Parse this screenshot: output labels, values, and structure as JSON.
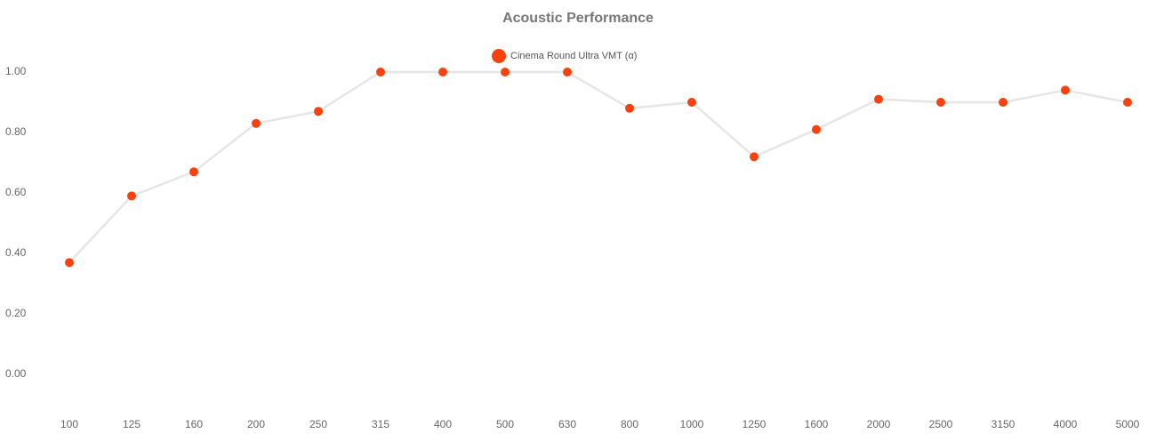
{
  "chart_data": {
    "type": "line",
    "title": "Acoustic Performance",
    "categories": [
      "100",
      "125",
      "160",
      "200",
      "250",
      "315",
      "400",
      "500",
      "630",
      "800",
      "1000",
      "1250",
      "1600",
      "2000",
      "2500",
      "3150",
      "4000",
      "5000"
    ],
    "series": [
      {
        "name": "Cinema Round Ultra VMT (α)",
        "color": "#f8410c",
        "line_color": "#e6e6e6",
        "values": [
          0.37,
          0.59,
          0.67,
          0.83,
          0.87,
          1.0,
          1.0,
          1.0,
          1.0,
          0.88,
          0.9,
          0.72,
          0.81,
          0.91,
          0.9,
          0.9,
          0.94,
          0.9
        ]
      }
    ],
    "ylim": [
      -0.1,
      1.1
    ],
    "yticks": [
      {
        "value": 0,
        "label": "0.00"
      },
      {
        "value": 0.2,
        "label": "0.20"
      },
      {
        "value": 0.4,
        "label": "0.40"
      },
      {
        "value": 0.6,
        "label": "0.60"
      },
      {
        "value": 0.8,
        "label": "0.80"
      },
      {
        "value": 1,
        "label": "1.00"
      }
    ],
    "grid": false,
    "legend": "top"
  }
}
